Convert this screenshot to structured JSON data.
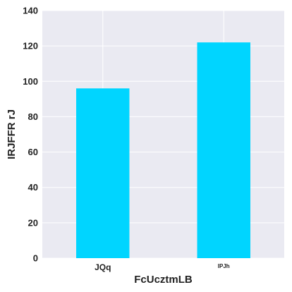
{
  "chart_data": {
    "type": "bar",
    "categories": [
      "JQq",
      "IPJh"
    ],
    "values": [
      96,
      122
    ],
    "title": "",
    "xlabel": "FcUcztmLB",
    "ylabel": "IRJFFR rJ",
    "ylim": [
      0,
      140
    ],
    "yticks": [
      0,
      20,
      40,
      60,
      80,
      100,
      120,
      140
    ],
    "grid": true,
    "bar_color": "#00d5ff",
    "background_color": "#eaeaf2",
    "grid_color": "#ffffff"
  }
}
